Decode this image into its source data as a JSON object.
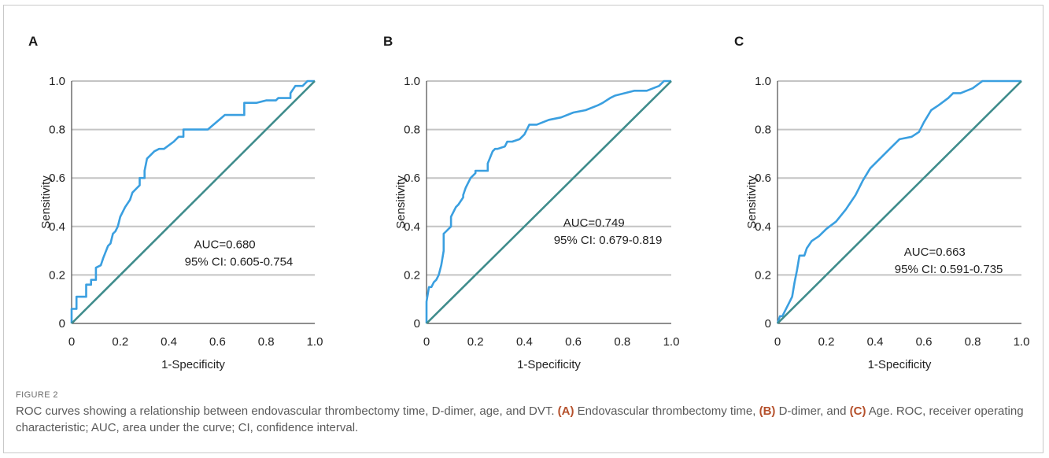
{
  "chart_data": [
    {
      "type": "line",
      "panel_label": "A",
      "xlabel": "1-Specificity",
      "ylabel": "Sensitivity",
      "xlim": [
        0,
        1
      ],
      "ylim": [
        0,
        1
      ],
      "xticks": [
        "0",
        "0.2",
        "0.4",
        "0.6",
        "0.8",
        "1.0"
      ],
      "yticks": [
        "0",
        "0.2",
        "0.4",
        "0.6",
        "0.8",
        "1.0"
      ],
      "grid": "horizontal",
      "annotation": [
        "AUC=0.680",
        "95% CI: 0.605-0.754"
      ],
      "series": [
        {
          "role": "roc",
          "color": "#3a9fe0",
          "x": [
            0,
            0,
            0.02,
            0.02,
            0.03,
            0.03,
            0.06,
            0.06,
            0.08,
            0.08,
            0.1,
            0.1,
            0.12,
            0.13,
            0.15,
            0.16,
            0.17,
            0.18,
            0.19,
            0.2,
            0.22,
            0.24,
            0.25,
            0.27,
            0.28,
            0.28,
            0.3,
            0.3,
            0.31,
            0.33,
            0.34,
            0.36,
            0.38,
            0.42,
            0.44,
            0.46,
            0.46,
            0.56,
            0.63,
            0.71,
            0.71,
            0.76,
            0.8,
            0.84,
            0.85,
            0.9,
            0.9,
            0.92,
            0.95,
            0.97,
            1.0
          ],
          "y": [
            0,
            0.06,
            0.06,
            0.11,
            0.11,
            0.11,
            0.11,
            0.16,
            0.16,
            0.18,
            0.18,
            0.23,
            0.24,
            0.27,
            0.32,
            0.33,
            0.37,
            0.38,
            0.4,
            0.44,
            0.48,
            0.51,
            0.54,
            0.56,
            0.57,
            0.6,
            0.6,
            0.63,
            0.68,
            0.7,
            0.71,
            0.72,
            0.72,
            0.75,
            0.77,
            0.77,
            0.8,
            0.8,
            0.86,
            0.86,
            0.91,
            0.91,
            0.92,
            0.92,
            0.93,
            0.93,
            0.95,
            0.98,
            0.98,
            1.0,
            1.0
          ]
        },
        {
          "role": "reference",
          "color": "#3f8c8c",
          "x": [
            0,
            1
          ],
          "y": [
            0,
            1
          ]
        }
      ]
    },
    {
      "type": "line",
      "panel_label": "B",
      "xlabel": "1-Specificity",
      "ylabel": "Sensitivity",
      "xlim": [
        0,
        1
      ],
      "ylim": [
        0,
        1
      ],
      "xticks": [
        "0",
        "0.2",
        "0.4",
        "0.6",
        "0.8",
        "1.0"
      ],
      "yticks": [
        "0",
        "0.2",
        "0.4",
        "0.6",
        "0.8",
        "1.0"
      ],
      "grid": "horizontal",
      "annotation": [
        "AUC=0.749",
        "95% CI: 0.679-0.819"
      ],
      "series": [
        {
          "role": "roc",
          "color": "#3a9fe0",
          "x": [
            0,
            0,
            0.01,
            0.02,
            0.03,
            0.04,
            0.05,
            0.06,
            0.07,
            0.07,
            0.08,
            0.1,
            0.1,
            0.12,
            0.13,
            0.15,
            0.15,
            0.16,
            0.18,
            0.2,
            0.2,
            0.22,
            0.25,
            0.25,
            0.27,
            0.28,
            0.29,
            0.32,
            0.33,
            0.35,
            0.38,
            0.4,
            0.42,
            0.45,
            0.5,
            0.55,
            0.6,
            0.65,
            0.7,
            0.72,
            0.75,
            0.77,
            0.85,
            0.9,
            0.95,
            0.97,
            1.0
          ],
          "y": [
            0,
            0.09,
            0.15,
            0.15,
            0.17,
            0.18,
            0.2,
            0.24,
            0.3,
            0.37,
            0.38,
            0.4,
            0.44,
            0.48,
            0.49,
            0.52,
            0.53,
            0.56,
            0.6,
            0.62,
            0.63,
            0.63,
            0.63,
            0.66,
            0.71,
            0.72,
            0.72,
            0.73,
            0.75,
            0.75,
            0.76,
            0.78,
            0.82,
            0.82,
            0.84,
            0.85,
            0.87,
            0.88,
            0.9,
            0.91,
            0.93,
            0.94,
            0.96,
            0.96,
            0.98,
            1.0,
            1.0
          ]
        },
        {
          "role": "reference",
          "color": "#3f8c8c",
          "x": [
            0,
            1
          ],
          "y": [
            0,
            1
          ]
        }
      ]
    },
    {
      "type": "line",
      "panel_label": "C",
      "xlabel": "1-Specificity",
      "ylabel": "Sensitivity",
      "xlim": [
        0,
        1
      ],
      "ylim": [
        0,
        1
      ],
      "xticks": [
        "0",
        "0.2",
        "0.4",
        "0.6",
        "0.8",
        "1.0"
      ],
      "yticks": [
        "0",
        "0.2",
        "0.4",
        "0.6",
        "0.8",
        "1.0"
      ],
      "grid": "horizontal",
      "annotation": [
        "AUC=0.663",
        "95% CI: 0.591-0.735"
      ],
      "series": [
        {
          "role": "roc",
          "color": "#3a9fe0",
          "x": [
            0,
            0.01,
            0.02,
            0.03,
            0.05,
            0.06,
            0.07,
            0.08,
            0.09,
            0.11,
            0.12,
            0.14,
            0.17,
            0.2,
            0.24,
            0.28,
            0.32,
            0.35,
            0.38,
            0.42,
            0.46,
            0.5,
            0.55,
            0.58,
            0.6,
            0.63,
            0.66,
            0.7,
            0.72,
            0.75,
            0.8,
            0.84,
            0.9,
            1.0
          ],
          "y": [
            0,
            0.03,
            0.03,
            0.05,
            0.09,
            0.11,
            0.17,
            0.22,
            0.28,
            0.28,
            0.31,
            0.34,
            0.36,
            0.39,
            0.42,
            0.47,
            0.53,
            0.59,
            0.64,
            0.68,
            0.72,
            0.76,
            0.77,
            0.79,
            0.83,
            0.88,
            0.9,
            0.93,
            0.95,
            0.95,
            0.97,
            1.0,
            1.0,
            1.0
          ]
        },
        {
          "role": "reference",
          "color": "#3f8c8c",
          "x": [
            0,
            1
          ],
          "y": [
            0,
            1
          ]
        }
      ]
    }
  ],
  "figure": {
    "label": "FIGURE 2",
    "caption_intro": "ROC curves showing a relationship between endovascular thrombectomy time, D-dimer, age, and DVT. ",
    "caption_a_tag": "(A)",
    "caption_a_text": " Endovascular thrombectomy time, ",
    "caption_b_tag": "(B)",
    "caption_b_text": " D-dimer, and ",
    "caption_c_tag": "(C)",
    "caption_c_text": " Age. ROC, receiver operating characteristic; AUC, area under the curve; CI, confidence interval."
  },
  "colors": {
    "roc_line": "#3a9fe0",
    "reference_line": "#3f8c8c",
    "gridline": "#c4c4c4",
    "axis": "#4a4a4a",
    "caption_highlight": "#b5502b"
  }
}
